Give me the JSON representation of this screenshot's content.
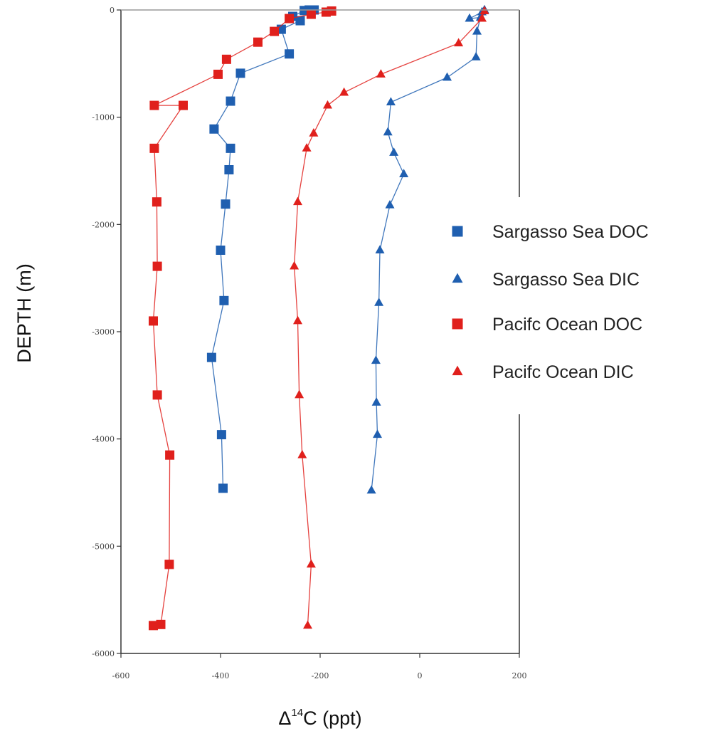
{
  "chart_data": {
    "type": "scatter",
    "title": "",
    "xlabel_prefix": "Δ",
    "xlabel_sup": "14",
    "xlabel_suffix": "C (ppt)",
    "ylabel": "DEPTH (m)",
    "xlim": [
      -600,
      200
    ],
    "ylim": [
      -6000,
      0
    ],
    "xticks": [
      -600,
      -400,
      -200,
      0,
      200
    ],
    "xtick_labels": [
      "-600",
      "-400",
      "-200",
      "0",
      "200"
    ],
    "yticks": [
      0,
      -1000,
      -2000,
      -3000,
      -4000,
      -5000,
      -6000
    ],
    "ytick_labels": [
      "0",
      "-1000",
      "-2000",
      "-3000",
      "-4000",
      "-5000",
      "-6000"
    ],
    "grid": false,
    "legend_position": "right",
    "series": [
      {
        "name": "Sargasso Sea  DOC",
        "marker": "square",
        "color": "#1f5fb0",
        "points": [
          [
            -212,
            0
          ],
          [
            -222,
            0
          ],
          [
            -232,
            -5
          ],
          [
            -255,
            -60
          ],
          [
            -240,
            -100
          ],
          [
            -278,
            -180
          ],
          [
            -262,
            -410
          ],
          [
            -360,
            -590
          ],
          [
            -380,
            -850
          ],
          [
            -413,
            -1110
          ],
          [
            -380,
            -1290
          ],
          [
            -383,
            -1490
          ],
          [
            -390,
            -1810
          ],
          [
            -400,
            -2240
          ],
          [
            -393,
            -2710
          ],
          [
            -418,
            -3240
          ],
          [
            -398,
            -3960
          ],
          [
            -395,
            -4460
          ]
        ]
      },
      {
        "name": "Sargasso Sea  DIC",
        "marker": "triangle",
        "color": "#1f5fb0",
        "points": [
          [
            130,
            0
          ],
          [
            125,
            -20
          ],
          [
            100,
            -80
          ],
          [
            122,
            -70
          ],
          [
            115,
            -200
          ],
          [
            113,
            -440
          ],
          [
            55,
            -630
          ],
          [
            -58,
            -860
          ],
          [
            -64,
            -1140
          ],
          [
            -52,
            -1330
          ],
          [
            -32,
            -1530
          ],
          [
            -60,
            -1820
          ],
          [
            -80,
            -2240
          ],
          [
            -82,
            -2730
          ],
          [
            -88,
            -3270
          ],
          [
            -87,
            -3660
          ],
          [
            -85,
            -3960
          ],
          [
            -97,
            -4480
          ]
        ]
      },
      {
        "name": "Pacifc Ocean  DOC",
        "marker": "square",
        "color": "#e0201c",
        "points": [
          [
            -177,
            -10
          ],
          [
            -188,
            -20
          ],
          [
            -218,
            -40
          ],
          [
            -262,
            -80
          ],
          [
            -292,
            -200
          ],
          [
            -325,
            -300
          ],
          [
            -388,
            -460
          ],
          [
            -405,
            -600
          ],
          [
            -533,
            -890
          ],
          [
            -475,
            -890
          ],
          [
            -533,
            -1290
          ],
          [
            -528,
            -1790
          ],
          [
            -527,
            -2390
          ],
          [
            -535,
            -2900
          ],
          [
            -527,
            -3590
          ],
          [
            -502,
            -4150
          ],
          [
            -503,
            -5170
          ],
          [
            -520,
            -5730
          ],
          [
            -535,
            -5740
          ]
        ]
      },
      {
        "name": "Pacifc Ocean  DIC",
        "marker": "triangle",
        "color": "#e0201c",
        "points": [
          [
            130,
            -10
          ],
          [
            125,
            -80
          ],
          [
            78,
            -310
          ],
          [
            -78,
            -600
          ],
          [
            -152,
            -770
          ],
          [
            -185,
            -890
          ],
          [
            -213,
            -1150
          ],
          [
            -227,
            -1290
          ],
          [
            -245,
            -1790
          ],
          [
            -252,
            -2390
          ],
          [
            -245,
            -2900
          ],
          [
            -242,
            -3590
          ],
          [
            -236,
            -4150
          ],
          [
            -218,
            -5170
          ],
          [
            -225,
            -5740
          ]
        ]
      }
    ]
  }
}
